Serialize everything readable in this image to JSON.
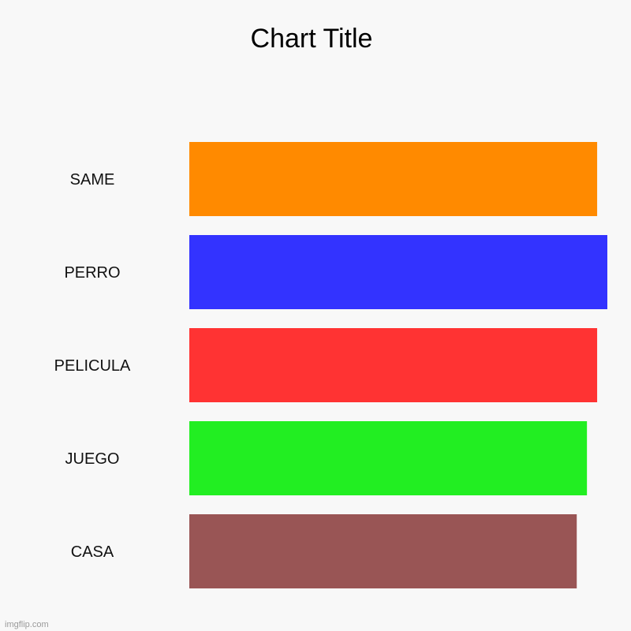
{
  "chart_data": {
    "type": "bar",
    "orientation": "horizontal",
    "title": "Chart Title",
    "categories": [
      "SAME",
      "PERRO",
      "PELICULA",
      "JUEGO",
      "CASA"
    ],
    "values": [
      40,
      41,
      40,
      39,
      38
    ],
    "colors": [
      "#ff8a00",
      "#3333ff",
      "#ff3333",
      "#22ee22",
      "#995555"
    ],
    "xlim": [
      0,
      41
    ],
    "grid": false,
    "legend": "none"
  },
  "watermark": "imgflip.com"
}
